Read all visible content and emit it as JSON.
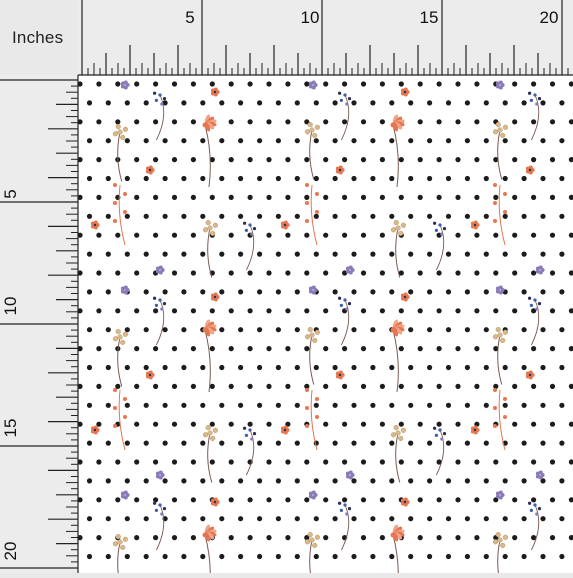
{
  "ruler": {
    "unit_label": "Inches",
    "top_labels": [
      "5",
      "10",
      "15",
      "20"
    ],
    "left_labels": [
      "5",
      "10",
      "15",
      "20"
    ]
  },
  "fabric": {
    "background_color": "#ffffff",
    "dot_color": "#1c1c1c",
    "pattern": "black polka dots with watercolor wildflower sprigs",
    "motif_colors": {
      "coral": "#e6764f",
      "peach": "#f2a48a",
      "lavender": "#8b7ab8",
      "blue": "#3e5fa8",
      "navy": "#2a2f55",
      "tan": "#d9b98c",
      "stem": "#7a5a52"
    }
  }
}
